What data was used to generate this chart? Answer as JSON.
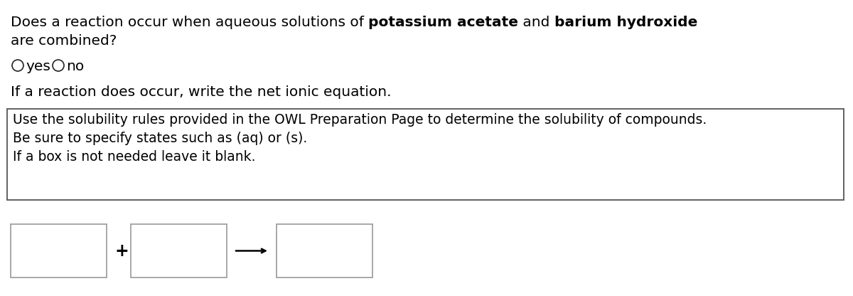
{
  "bg_color": "#ffffff",
  "text_color": "#000000",
  "line1_normal": "Does a reaction occur when aqueous solutions of ",
  "line1_bold1": "potassium acetate",
  "line1_between": " and ",
  "line1_bold2": "barium hydroxide",
  "line2": "are combined?",
  "reaction_line": "If a reaction does occur, write the net ionic equation.",
  "hint_box_lines": [
    "Use the solubility rules provided in the OWL Preparation Page to determine the solubility of compounds.",
    "Be sure to specify states such as (aq) or (s).",
    "If a box is not needed leave it blank."
  ],
  "font_size_main": 14.5,
  "font_size_hint": 13.5,
  "hint_box_edge": "#555555",
  "input_box_edge": "#999999",
  "fig_w": 12.0,
  "fig_h": 4.16,
  "dpi": 100
}
